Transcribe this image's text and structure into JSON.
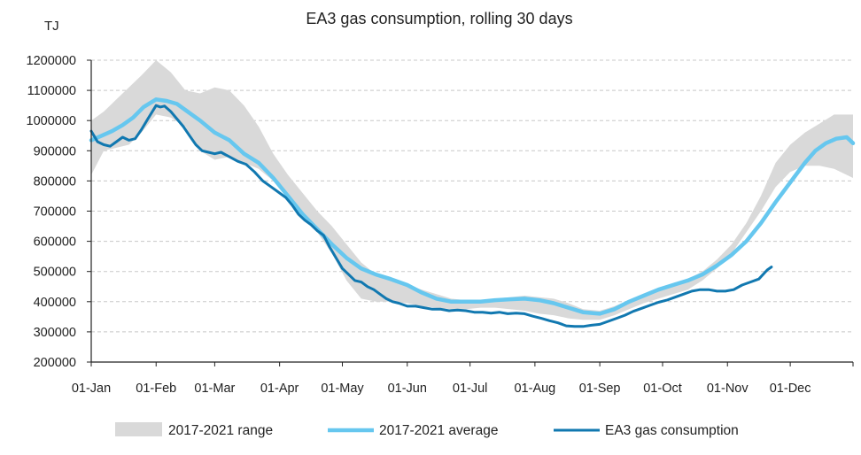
{
  "chart_data": {
    "type": "line",
    "title": "EA3 gas consumption, rolling 30 days",
    "ylabel": "TJ",
    "xlabel": "",
    "ylim": [
      200000,
      1200000
    ],
    "yticks": [
      "200000",
      "300000",
      "400000",
      "500000",
      "600000",
      "700000",
      "800000",
      "900000",
      "1000000",
      "1100000",
      "1200000"
    ],
    "xlim": [
      "01-Jan",
      "31-Dec"
    ],
    "xticks": [
      {
        "label": "01-Jan",
        "day": 0
      },
      {
        "label": "01-Feb",
        "day": 31
      },
      {
        "label": "01-Mar",
        "day": 59
      },
      {
        "label": "01-Apr",
        "day": 90
      },
      {
        "label": "01-May",
        "day": 120
      },
      {
        "label": "01-Jun",
        "day": 151
      },
      {
        "label": "01-Jul",
        "day": 181
      },
      {
        "label": "01-Aug",
        "day": 212
      },
      {
        "label": "01-Sep",
        "day": 243
      },
      {
        "label": "01-Oct",
        "day": 273
      },
      {
        "label": "01-Nov",
        "day": 304
      },
      {
        "label": "01-Dec",
        "day": 334
      }
    ],
    "grid": "horizontal dashed",
    "legend_position": "bottom",
    "series": [
      {
        "name": "2017-2021 range",
        "kind": "band",
        "color": "#d9d9d9",
        "x": [
          0,
          6,
          12,
          18,
          24,
          31,
          38,
          45,
          52,
          59,
          66,
          73,
          80,
          87,
          94,
          101,
          108,
          115,
          122,
          129,
          136,
          143,
          151,
          158,
          165,
          172,
          179,
          186,
          193,
          200,
          207,
          214,
          221,
          228,
          235,
          243,
          250,
          257,
          264,
          271,
          278,
          285,
          292,
          299,
          306,
          313,
          320,
          327,
          334,
          341,
          348,
          355,
          364
        ],
        "low": [
          820000,
          900000,
          910000,
          920000,
          960000,
          1020000,
          1010000,
          980000,
          900000,
          870000,
          880000,
          860000,
          840000,
          800000,
          740000,
          690000,
          630000,
          560000,
          470000,
          410000,
          400000,
          400000,
          395000,
          385000,
          380000,
          375000,
          375000,
          380000,
          380000,
          375000,
          370000,
          360000,
          355000,
          345000,
          340000,
          340000,
          355000,
          375000,
          395000,
          410000,
          425000,
          440000,
          470000,
          510000,
          560000,
          630000,
          700000,
          780000,
          830000,
          850000,
          850000,
          840000,
          810000
        ],
        "high": [
          1000000,
          1030000,
          1070000,
          1110000,
          1150000,
          1200000,
          1160000,
          1100000,
          1090000,
          1110000,
          1100000,
          1050000,
          980000,
          890000,
          820000,
          760000,
          700000,
          650000,
          590000,
          530000,
          490000,
          470000,
          455000,
          440000,
          425000,
          410000,
          405000,
          405000,
          410000,
          415000,
          420000,
          415000,
          410000,
          395000,
          375000,
          370000,
          385000,
          405000,
          425000,
          445000,
          460000,
          475000,
          500000,
          540000,
          590000,
          660000,
          750000,
          860000,
          920000,
          960000,
          990000,
          1020000,
          1020000
        ]
      },
      {
        "name": "2017-2021 average",
        "kind": "line",
        "color": "#66c7ef",
        "x": [
          0,
          5,
          10,
          15,
          20,
          25,
          31,
          36,
          41,
          46,
          52,
          59,
          66,
          73,
          80,
          87,
          94,
          101,
          108,
          115,
          122,
          129,
          136,
          143,
          151,
          158,
          165,
          172,
          179,
          186,
          193,
          200,
          207,
          214,
          221,
          228,
          235,
          243,
          250,
          257,
          264,
          271,
          278,
          285,
          292,
          299,
          306,
          313,
          320,
          327,
          334,
          341,
          346,
          351,
          356,
          361,
          364
        ],
        "y": [
          935000,
          950000,
          965000,
          985000,
          1010000,
          1045000,
          1070000,
          1065000,
          1055000,
          1030000,
          1000000,
          960000,
          935000,
          890000,
          860000,
          810000,
          750000,
          690000,
          640000,
          590000,
          545000,
          510000,
          490000,
          475000,
          455000,
          430000,
          410000,
          400000,
          400000,
          400000,
          405000,
          408000,
          410000,
          405000,
          395000,
          380000,
          365000,
          360000,
          375000,
          400000,
          420000,
          440000,
          455000,
          470000,
          490000,
          520000,
          555000,
          600000,
          660000,
          730000,
          795000,
          860000,
          900000,
          925000,
          940000,
          945000,
          925000
        ]
      },
      {
        "name": "EA3 gas consumption",
        "kind": "line",
        "color": "#1178b0",
        "x": [
          0,
          3,
          6,
          9,
          12,
          15,
          18,
          21,
          24,
          27,
          31,
          33,
          35,
          38,
          41,
          44,
          47,
          50,
          53,
          56,
          59,
          62,
          66,
          70,
          74,
          78,
          82,
          86,
          90,
          93,
          96,
          99,
          102,
          105,
          108,
          111,
          114,
          117,
          120,
          123,
          126,
          129,
          132,
          135,
          138,
          141,
          144,
          147,
          151,
          155,
          159,
          163,
          167,
          171,
          175,
          179,
          183,
          187,
          191,
          195,
          199,
          203,
          207,
          211,
          215,
          219,
          223,
          227,
          231,
          235,
          239,
          243,
          247,
          251,
          255,
          259,
          263,
          267,
          271,
          275,
          279,
          283,
          287,
          291,
          295,
          299,
          303,
          307,
          311,
          315,
          319,
          323,
          325
        ],
        "y": [
          965000,
          930000,
          920000,
          915000,
          930000,
          945000,
          935000,
          940000,
          970000,
          1005000,
          1050000,
          1045000,
          1048000,
          1030000,
          1005000,
          980000,
          950000,
          920000,
          900000,
          895000,
          890000,
          895000,
          880000,
          865000,
          855000,
          830000,
          800000,
          780000,
          760000,
          745000,
          720000,
          690000,
          670000,
          655000,
          635000,
          620000,
          580000,
          545000,
          510000,
          490000,
          470000,
          465000,
          450000,
          440000,
          425000,
          410000,
          400000,
          395000,
          385000,
          385000,
          380000,
          375000,
          375000,
          370000,
          372000,
          370000,
          365000,
          365000,
          362000,
          365000,
          360000,
          362000,
          360000,
          352000,
          345000,
          337000,
          330000,
          320000,
          318000,
          318000,
          322000,
          325000,
          335000,
          345000,
          355000,
          368000,
          378000,
          388000,
          398000,
          405000,
          415000,
          425000,
          435000,
          440000,
          440000,
          435000,
          435000,
          440000,
          455000,
          465000,
          475000,
          505000,
          515000
        ]
      }
    ]
  }
}
